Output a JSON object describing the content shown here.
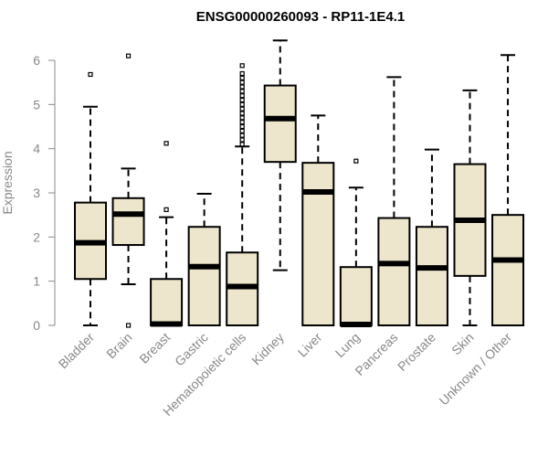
{
  "chart_data": {
    "type": "boxplot",
    "title": "ENSG00000260093 - RP11-1E4.1",
    "xlabel": "",
    "ylabel": "Expression",
    "ylim": [
      0,
      6.5
    ],
    "yticks": [
      0,
      1,
      2,
      3,
      4,
      5,
      6
    ],
    "box_fill": "#ede6cc",
    "categories": [
      "Bladder",
      "Brain",
      "Breast",
      "Gastric",
      "Hematopoietic cells",
      "Kidney",
      "Liver",
      "Lung",
      "Pancreas",
      "Prostate",
      "Skin",
      "Unknown / Other"
    ],
    "boxes": [
      {
        "name": "Bladder",
        "whisker_low": 0,
        "q1": 1.05,
        "median": 1.87,
        "q3": 2.78,
        "whisker_high": 4.95,
        "outliers": [
          5.68
        ]
      },
      {
        "name": "Brain",
        "whisker_low": 0.93,
        "q1": 1.82,
        "median": 2.52,
        "q3": 2.88,
        "whisker_high": 3.55,
        "outliers": [
          6.1,
          0
        ]
      },
      {
        "name": "Breast",
        "whisker_low": 0,
        "q1": 0,
        "median": 0.03,
        "q3": 1.05,
        "whisker_high": 2.45,
        "outliers": [
          4.12,
          2.62
        ]
      },
      {
        "name": "Gastric",
        "whisker_low": 0,
        "q1": 0,
        "median": 1.33,
        "q3": 2.23,
        "whisker_high": 2.98,
        "outliers": []
      },
      {
        "name": "Hematopoietic cells",
        "whisker_low": 0,
        "q1": 0,
        "median": 0.88,
        "q3": 1.65,
        "whisker_high": 4.05,
        "outliers": [
          4.1,
          4.2,
          4.3,
          4.4,
          4.5,
          4.6,
          4.7,
          4.8,
          4.9,
          5.0,
          5.1,
          5.2,
          5.3,
          5.4,
          5.5,
          5.6,
          5.7,
          5.88
        ]
      },
      {
        "name": "Kidney",
        "whisker_low": 1.25,
        "q1": 3.7,
        "median": 4.68,
        "q3": 5.43,
        "whisker_high": 6.45,
        "outliers": []
      },
      {
        "name": "Liver",
        "whisker_low": 0,
        "q1": 0,
        "median": 3.02,
        "q3": 3.68,
        "whisker_high": 4.75,
        "outliers": []
      },
      {
        "name": "Lung",
        "whisker_low": 0,
        "q1": 0,
        "median": 0.02,
        "q3": 1.32,
        "whisker_high": 3.12,
        "outliers": [
          3.72
        ]
      },
      {
        "name": "Pancreas",
        "whisker_low": 0,
        "q1": 0,
        "median": 1.4,
        "q3": 2.43,
        "whisker_high": 5.62,
        "outliers": []
      },
      {
        "name": "Prostate",
        "whisker_low": 0,
        "q1": 0,
        "median": 1.3,
        "q3": 2.23,
        "whisker_high": 3.98,
        "outliers": []
      },
      {
        "name": "Skin",
        "whisker_low": 0,
        "q1": 1.12,
        "median": 2.38,
        "q3": 3.65,
        "whisker_high": 5.32,
        "outliers": []
      },
      {
        "name": "Unknown / Other",
        "whisker_low": 0,
        "q1": 0,
        "median": 1.48,
        "q3": 2.5,
        "whisker_high": 6.12,
        "outliers": []
      }
    ]
  }
}
